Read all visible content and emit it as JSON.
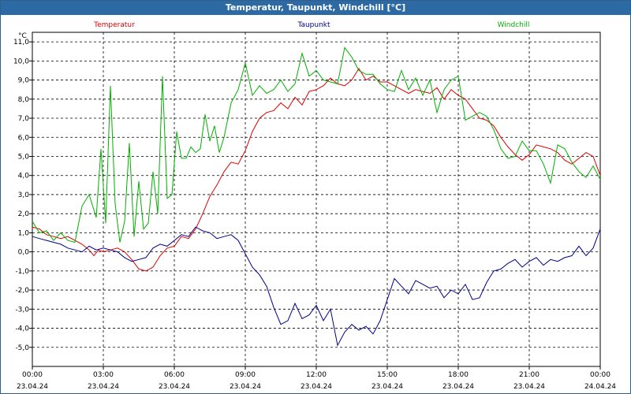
{
  "window": {
    "title": "Temperatur, Taupunkt, Windchill [°C]"
  },
  "chart_data": {
    "type": "line",
    "title": "Temperatur, Taupunkt, Windchill [°C]",
    "ylabel": "°C",
    "ylim": [
      -6,
      11.5
    ],
    "yticks": [
      "11,0",
      "10,0",
      "9,0",
      "8,0",
      "7,0",
      "6,0",
      "5,0",
      "4,0",
      "3,0",
      "2,0",
      "1,0",
      "0,0",
      "-1,0",
      "-2,0",
      "-3,0",
      "-4,0",
      "-5,0"
    ],
    "ytick_values": [
      11,
      10,
      9,
      8,
      7,
      6,
      5,
      4,
      3,
      2,
      1,
      0,
      -1,
      -2,
      -3,
      -4,
      -5
    ],
    "xlim": [
      0,
      24
    ],
    "xticks": [
      {
        "time": "00:00",
        "date": "23.04.24",
        "h": 0
      },
      {
        "time": "03:00",
        "date": "23.04.24",
        "h": 3
      },
      {
        "time": "06:00",
        "date": "23.04.24",
        "h": 6
      },
      {
        "time": "09:00",
        "date": "23.04.24",
        "h": 9
      },
      {
        "time": "12:00",
        "date": "23.04.24",
        "h": 12
      },
      {
        "time": "15:00",
        "date": "23.04.24",
        "h": 15
      },
      {
        "time": "18:00",
        "date": "23.04.24",
        "h": 18
      },
      {
        "time": "21:00",
        "date": "23.04.24",
        "h": 21
      },
      {
        "time": "00:00",
        "date": "24.04.24",
        "h": 24
      }
    ],
    "grid": true,
    "legend": "top",
    "series": [
      {
        "name": "Temperatur",
        "color": "#e00000",
        "x": [
          0,
          0.3,
          0.6,
          0.9,
          1.2,
          1.5,
          1.8,
          2.1,
          2.4,
          2.6,
          2.8,
          3.0,
          3.3,
          3.6,
          3.9,
          4.2,
          4.5,
          4.8,
          5.1,
          5.4,
          5.7,
          6.0,
          6.3,
          6.6,
          6.9,
          7.2,
          7.5,
          7.8,
          8.1,
          8.4,
          8.7,
          9.0,
          9.3,
          9.6,
          9.9,
          10.2,
          10.5,
          10.8,
          11.1,
          11.4,
          11.7,
          12.0,
          12.3,
          12.6,
          12.9,
          13.2,
          13.5,
          13.8,
          14.1,
          14.4,
          14.7,
          15.0,
          15.3,
          15.6,
          15.9,
          16.2,
          16.5,
          16.8,
          17.1,
          17.4,
          17.7,
          18.0,
          18.3,
          18.6,
          18.9,
          19.2,
          19.5,
          19.8,
          20.1,
          20.4,
          20.7,
          21.0,
          21.3,
          21.6,
          21.9,
          22.2,
          22.5,
          22.8,
          23.1,
          23.4,
          23.7,
          24.0
        ],
        "values": [
          1.3,
          1.2,
          0.9,
          0.8,
          0.7,
          0.8,
          0.6,
          0.4,
          0.1,
          -0.2,
          0.1,
          0.0,
          0.1,
          0.2,
          0.0,
          -0.4,
          -0.9,
          -1.0,
          -0.8,
          -0.2,
          0.2,
          0.3,
          0.8,
          0.7,
          1.2,
          2.0,
          2.9,
          3.5,
          4.2,
          4.7,
          4.6,
          5.3,
          6.3,
          7.0,
          7.3,
          7.4,
          7.8,
          7.5,
          8.1,
          7.7,
          8.4,
          8.5,
          8.7,
          9.1,
          8.8,
          8.7,
          9.0,
          9.6,
          9.0,
          9.2,
          8.9,
          8.9,
          8.7,
          8.5,
          8.3,
          8.5,
          8.4,
          8.3,
          8.6,
          8.0,
          8.5,
          8.2,
          8.0,
          7.5,
          7.0,
          6.9,
          6.6,
          6.0,
          5.5,
          5.1,
          4.8,
          5.1,
          5.6,
          5.5,
          5.4,
          5.2,
          4.8,
          4.6,
          4.9,
          5.2,
          5.0,
          4.0
        ]
      },
      {
        "name": "Taupunkt",
        "color": "#00008b",
        "x": [
          0,
          0.3,
          0.6,
          0.9,
          1.2,
          1.5,
          1.8,
          2.1,
          2.4,
          2.7,
          3.0,
          3.3,
          3.6,
          3.9,
          4.2,
          4.5,
          4.8,
          5.1,
          5.4,
          5.7,
          6.0,
          6.3,
          6.6,
          6.9,
          7.2,
          7.5,
          7.8,
          8.1,
          8.4,
          8.7,
          9.0,
          9.3,
          9.6,
          9.9,
          10.2,
          10.5,
          10.8,
          11.1,
          11.4,
          11.7,
          12.0,
          12.3,
          12.6,
          12.9,
          13.2,
          13.5,
          13.8,
          14.1,
          14.4,
          14.7,
          15.0,
          15.3,
          15.6,
          15.9,
          16.2,
          16.5,
          16.8,
          17.1,
          17.4,
          17.7,
          18.0,
          18.3,
          18.6,
          18.9,
          19.2,
          19.5,
          19.8,
          20.1,
          20.4,
          20.7,
          21.0,
          21.3,
          21.6,
          21.9,
          22.2,
          22.5,
          22.8,
          23.1,
          23.4,
          23.7,
          24.0
        ],
        "values": [
          0.8,
          0.7,
          0.6,
          0.5,
          0.4,
          0.2,
          0.1,
          0.0,
          0.3,
          0.1,
          0.2,
          0.1,
          0.0,
          -0.3,
          -0.5,
          -0.4,
          -0.3,
          0.2,
          0.4,
          0.3,
          0.6,
          0.9,
          0.8,
          1.3,
          1.1,
          1.0,
          0.7,
          0.8,
          0.9,
          0.6,
          -0.1,
          -0.8,
          -1.2,
          -1.8,
          -2.9,
          -3.8,
          -3.6,
          -2.7,
          -3.5,
          -3.3,
          -2.8,
          -3.6,
          -3.0,
          -4.9,
          -4.2,
          -3.8,
          -4.1,
          -3.9,
          -4.3,
          -3.6,
          -2.5,
          -1.4,
          -1.8,
          -2.2,
          -1.5,
          -1.7,
          -1.9,
          -1.8,
          -2.4,
          -2.0,
          -2.2,
          -1.7,
          -2.5,
          -2.4,
          -1.6,
          -1.0,
          -0.9,
          -0.6,
          -0.4,
          -0.8,
          -0.5,
          -0.3,
          -0.7,
          -0.4,
          -0.5,
          -0.3,
          -0.2,
          0.3,
          -0.2,
          0.2,
          1.2
        ]
      },
      {
        "name": "Windchill",
        "color": "#00b000",
        "x": [
          0,
          0.3,
          0.6,
          0.9,
          1.2,
          1.5,
          1.8,
          2.1,
          2.4,
          2.7,
          2.9,
          3.1,
          3.3,
          3.5,
          3.7,
          3.9,
          4.1,
          4.3,
          4.5,
          4.7,
          4.9,
          5.1,
          5.3,
          5.5,
          5.7,
          5.9,
          6.1,
          6.3,
          6.5,
          6.7,
          6.9,
          7.1,
          7.3,
          7.5,
          7.7,
          7.9,
          8.1,
          8.4,
          8.7,
          9.0,
          9.3,
          9.6,
          9.9,
          10.2,
          10.5,
          10.8,
          11.1,
          11.4,
          11.7,
          12.0,
          12.3,
          12.6,
          12.9,
          13.2,
          13.5,
          13.8,
          14.1,
          14.4,
          14.7,
          15.0,
          15.3,
          15.6,
          15.9,
          16.2,
          16.5,
          16.8,
          17.1,
          17.4,
          17.7,
          18.0,
          18.3,
          18.6,
          18.9,
          19.2,
          19.5,
          19.8,
          20.1,
          20.4,
          20.7,
          21.0,
          21.3,
          21.6,
          21.9,
          22.2,
          22.5,
          22.8,
          23.1,
          23.4,
          23.7,
          24.0
        ],
        "values": [
          1.6,
          1.0,
          1.1,
          0.6,
          1.0,
          0.6,
          0.5,
          2.4,
          3.0,
          1.8,
          5.4,
          1.5,
          8.7,
          2.5,
          0.5,
          1.6,
          5.7,
          0.8,
          3.7,
          1.2,
          1.5,
          4.2,
          2.0,
          9.2,
          2.8,
          3.0,
          6.3,
          4.9,
          4.9,
          5.5,
          5.2,
          5.4,
          7.2,
          5.8,
          6.6,
          5.2,
          6.0,
          7.8,
          8.5,
          9.9,
          8.2,
          8.7,
          8.3,
          8.5,
          9.0,
          8.4,
          8.8,
          10.4,
          9.2,
          9.5,
          9.0,
          8.9,
          8.8,
          10.7,
          10.2,
          9.5,
          9.3,
          9.3,
          8.8,
          8.5,
          8.4,
          9.5,
          8.5,
          9.1,
          8.2,
          9.0,
          7.3,
          8.5,
          9.0,
          9.2,
          6.9,
          7.1,
          7.3,
          7.1,
          6.4,
          5.4,
          4.9,
          5.0,
          5.8,
          5.3,
          5.3,
          4.6,
          3.6,
          5.6,
          5.4,
          4.7,
          4.2,
          3.9,
          4.5,
          3.8
        ]
      }
    ]
  }
}
